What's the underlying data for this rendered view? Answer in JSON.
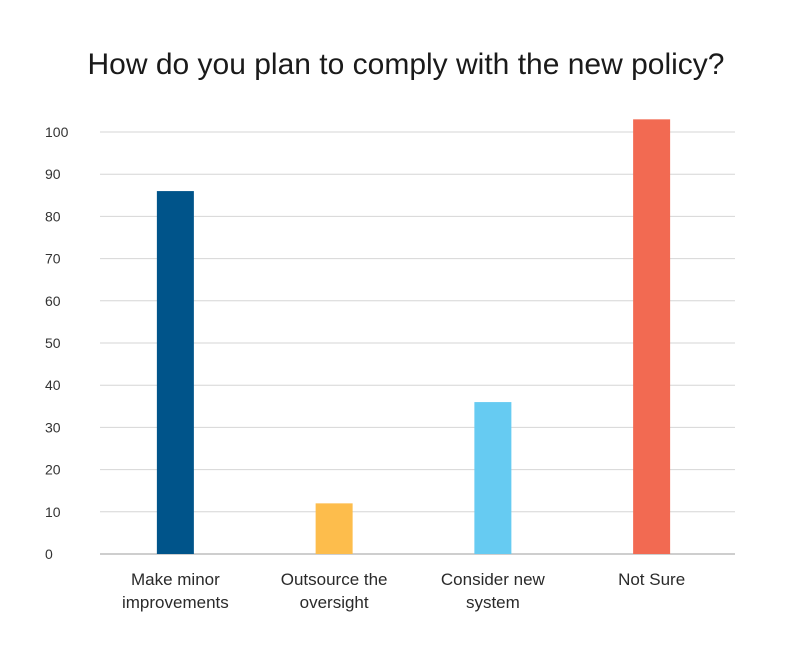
{
  "chart_data": {
    "type": "bar",
    "title": "How do you plan to comply with the new policy?",
    "xlabel": "",
    "ylabel": "",
    "ylim": [
      0,
      100
    ],
    "yticks": [
      0,
      10,
      20,
      30,
      40,
      50,
      60,
      70,
      80,
      90,
      100
    ],
    "grid": true,
    "legend": "none",
    "categories": [
      [
        "Make minor",
        "improvements"
      ],
      [
        "Outsource the",
        "oversight"
      ],
      [
        "Consider new",
        "system"
      ],
      [
        "Not Sure"
      ]
    ],
    "values": [
      86,
      12,
      36,
      103
    ],
    "colors": [
      "#00548a",
      "#fdbd4c",
      "#66cbf2",
      "#f26a52"
    ]
  }
}
